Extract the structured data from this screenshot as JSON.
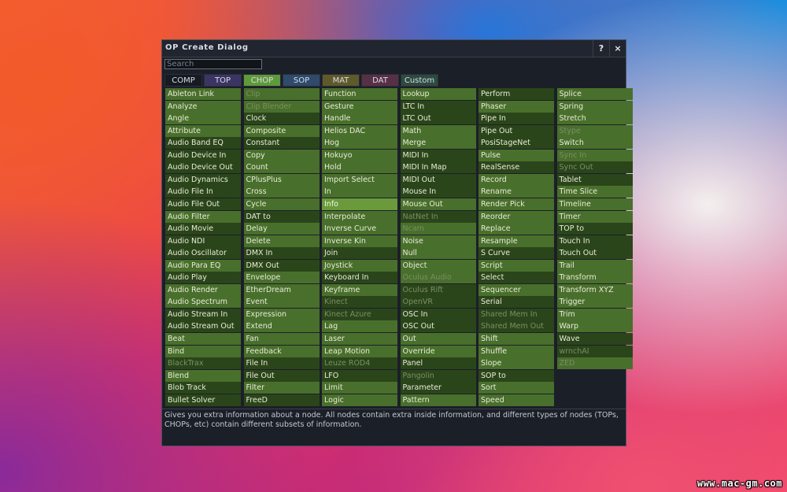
{
  "window": {
    "title": "OP Create Dialog",
    "help_label": "?",
    "close_label": "×"
  },
  "search": {
    "placeholder": "Search",
    "value": ""
  },
  "tabs": [
    {
      "label": "COMP",
      "color": "#161a22",
      "active": false
    },
    {
      "label": "TOP",
      "color": "#3b3563",
      "active": false
    },
    {
      "label": "CHOP",
      "color": "#5f9a3a",
      "active": true
    },
    {
      "label": "SOP",
      "color": "#2f4a6a",
      "active": false
    },
    {
      "label": "MAT",
      "color": "#5e5a2a",
      "active": false
    },
    {
      "label": "DAT",
      "color": "#583046",
      "active": false
    },
    {
      "label": "Custom",
      "color": "#2d4a40",
      "active": false
    }
  ],
  "selected_op": "Info",
  "columns": [
    [
      {
        "label": "Ableton Link",
        "tone": "lt"
      },
      {
        "label": "Analyze",
        "tone": "lt"
      },
      {
        "label": "Angle",
        "tone": "lt"
      },
      {
        "label": "Attribute",
        "tone": "lt"
      },
      {
        "label": "Audio Band EQ",
        "tone": "dk"
      },
      {
        "label": "Audio Device In",
        "tone": "dk"
      },
      {
        "label": "Audio Device Out",
        "tone": "dk"
      },
      {
        "label": "Audio Dynamics",
        "tone": "dk"
      },
      {
        "label": "Audio File In",
        "tone": "dk"
      },
      {
        "label": "Audio File Out",
        "tone": "dk"
      },
      {
        "label": "Audio Filter",
        "tone": "lt"
      },
      {
        "label": "Audio Movie",
        "tone": "dk"
      },
      {
        "label": "Audio NDI",
        "tone": "dk"
      },
      {
        "label": "Audio Oscillator",
        "tone": "dk"
      },
      {
        "label": "Audio Para EQ",
        "tone": "lt"
      },
      {
        "label": "Audio Play",
        "tone": "dk"
      },
      {
        "label": "Audio Render",
        "tone": "lt"
      },
      {
        "label": "Audio Spectrum",
        "tone": "lt"
      },
      {
        "label": "Audio Stream In",
        "tone": "dk"
      },
      {
        "label": "Audio Stream Out",
        "tone": "dk"
      },
      {
        "label": "Beat",
        "tone": "lt"
      },
      {
        "label": "Bind",
        "tone": "lt"
      },
      {
        "label": "BlackTrax",
        "tone": "dk",
        "disabled": true
      },
      {
        "label": "Blend",
        "tone": "lt"
      },
      {
        "label": "Blob Track",
        "tone": "dk"
      },
      {
        "label": "Bullet Solver",
        "tone": "dk"
      }
    ],
    [
      {
        "label": "Clip",
        "tone": "lt",
        "disabled": true
      },
      {
        "label": "Clip Blender",
        "tone": "lt",
        "disabled": true
      },
      {
        "label": "Clock",
        "tone": "dk"
      },
      {
        "label": "Composite",
        "tone": "lt"
      },
      {
        "label": "Constant",
        "tone": "dk"
      },
      {
        "label": "Copy",
        "tone": "lt"
      },
      {
        "label": "Count",
        "tone": "lt"
      },
      {
        "label": "CPlusPlus",
        "tone": "lt"
      },
      {
        "label": "Cross",
        "tone": "lt"
      },
      {
        "label": "Cycle",
        "tone": "lt"
      },
      {
        "label": "DAT to",
        "tone": "dk"
      },
      {
        "label": "Delay",
        "tone": "lt"
      },
      {
        "label": "Delete",
        "tone": "lt"
      },
      {
        "label": "DMX In",
        "tone": "dk"
      },
      {
        "label": "DMX Out",
        "tone": "dk"
      },
      {
        "label": "Envelope",
        "tone": "lt"
      },
      {
        "label": "EtherDream",
        "tone": "lt"
      },
      {
        "label": "Event",
        "tone": "lt"
      },
      {
        "label": "Expression",
        "tone": "lt"
      },
      {
        "label": "Extend",
        "tone": "lt"
      },
      {
        "label": "Fan",
        "tone": "lt"
      },
      {
        "label": "Feedback",
        "tone": "lt"
      },
      {
        "label": "File In",
        "tone": "dk"
      },
      {
        "label": "File Out",
        "tone": "dk"
      },
      {
        "label": "Filter",
        "tone": "lt"
      },
      {
        "label": "FreeD",
        "tone": "dk"
      }
    ],
    [
      {
        "label": "Function",
        "tone": "lt"
      },
      {
        "label": "Gesture",
        "tone": "lt"
      },
      {
        "label": "Handle",
        "tone": "lt"
      },
      {
        "label": "Helios DAC",
        "tone": "lt"
      },
      {
        "label": "Hog",
        "tone": "lt"
      },
      {
        "label": "Hokuyo",
        "tone": "lt"
      },
      {
        "label": "Hold",
        "tone": "lt"
      },
      {
        "label": "Import Select",
        "tone": "lt"
      },
      {
        "label": "In",
        "tone": "lt"
      },
      {
        "label": "Info",
        "tone": "sel"
      },
      {
        "label": "Interpolate",
        "tone": "lt"
      },
      {
        "label": "Inverse Curve",
        "tone": "lt"
      },
      {
        "label": "Inverse Kin",
        "tone": "lt"
      },
      {
        "label": "Join",
        "tone": "dk"
      },
      {
        "label": "Joystick",
        "tone": "lt"
      },
      {
        "label": "Keyboard In",
        "tone": "dk"
      },
      {
        "label": "Keyframe",
        "tone": "lt"
      },
      {
        "label": "Kinect",
        "tone": "dk",
        "disabled": true
      },
      {
        "label": "Kinect Azure",
        "tone": "dk",
        "disabled": true
      },
      {
        "label": "Lag",
        "tone": "lt"
      },
      {
        "label": "Laser",
        "tone": "lt"
      },
      {
        "label": "Leap Motion",
        "tone": "lt"
      },
      {
        "label": "Leuze ROD4",
        "tone": "dk",
        "disabled": true
      },
      {
        "label": "LFO",
        "tone": "dk"
      },
      {
        "label": "Limit",
        "tone": "lt"
      },
      {
        "label": "Logic",
        "tone": "lt"
      }
    ],
    [
      {
        "label": "Lookup",
        "tone": "lt"
      },
      {
        "label": "LTC In",
        "tone": "dk"
      },
      {
        "label": "LTC Out",
        "tone": "dk"
      },
      {
        "label": "Math",
        "tone": "lt"
      },
      {
        "label": "Merge",
        "tone": "lt"
      },
      {
        "label": "MIDI In",
        "tone": "dk"
      },
      {
        "label": "MIDI In Map",
        "tone": "dk"
      },
      {
        "label": "MIDI Out",
        "tone": "dk"
      },
      {
        "label": "Mouse In",
        "tone": "dk"
      },
      {
        "label": "Mouse Out",
        "tone": "lt"
      },
      {
        "label": "NatNet In",
        "tone": "dk",
        "disabled": true
      },
      {
        "label": "Ncam",
        "tone": "lt",
        "disabled": true
      },
      {
        "label": "Noise",
        "tone": "lt"
      },
      {
        "label": "Null",
        "tone": "lt"
      },
      {
        "label": "Object",
        "tone": "lt"
      },
      {
        "label": "Oculus Audio",
        "tone": "lt",
        "disabled": true
      },
      {
        "label": "Oculus Rift",
        "tone": "dk",
        "disabled": true
      },
      {
        "label": "OpenVR",
        "tone": "dk",
        "disabled": true
      },
      {
        "label": "OSC In",
        "tone": "dk"
      },
      {
        "label": "OSC Out",
        "tone": "dk"
      },
      {
        "label": "Out",
        "tone": "lt"
      },
      {
        "label": "Override",
        "tone": "lt"
      },
      {
        "label": "Panel",
        "tone": "dk"
      },
      {
        "label": "Pangolin",
        "tone": "dk",
        "disabled": true
      },
      {
        "label": "Parameter",
        "tone": "dk"
      },
      {
        "label": "Pattern",
        "tone": "lt"
      }
    ],
    [
      {
        "label": "Perform",
        "tone": "dk"
      },
      {
        "label": "Phaser",
        "tone": "lt"
      },
      {
        "label": "Pipe In",
        "tone": "dk"
      },
      {
        "label": "Pipe Out",
        "tone": "dk"
      },
      {
        "label": "PosiStageNet",
        "tone": "dk"
      },
      {
        "label": "Pulse",
        "tone": "lt"
      },
      {
        "label": "RealSense",
        "tone": "dk"
      },
      {
        "label": "Record",
        "tone": "lt"
      },
      {
        "label": "Rename",
        "tone": "lt"
      },
      {
        "label": "Render Pick",
        "tone": "lt"
      },
      {
        "label": "Reorder",
        "tone": "lt"
      },
      {
        "label": "Replace",
        "tone": "lt"
      },
      {
        "label": "Resample",
        "tone": "lt"
      },
      {
        "label": "S Curve",
        "tone": "dk"
      },
      {
        "label": "Script",
        "tone": "lt"
      },
      {
        "label": "Select",
        "tone": "dk"
      },
      {
        "label": "Sequencer",
        "tone": "lt"
      },
      {
        "label": "Serial",
        "tone": "dk"
      },
      {
        "label": "Shared Mem In",
        "tone": "dk",
        "disabled": true
      },
      {
        "label": "Shared Mem Out",
        "tone": "dk",
        "disabled": true
      },
      {
        "label": "Shift",
        "tone": "lt"
      },
      {
        "label": "Shuffle",
        "tone": "lt"
      },
      {
        "label": "Slope",
        "tone": "lt"
      },
      {
        "label": "SOP to",
        "tone": "dk"
      },
      {
        "label": "Sort",
        "tone": "lt"
      },
      {
        "label": "Speed",
        "tone": "lt"
      }
    ],
    [
      {
        "label": "Splice",
        "tone": "lt"
      },
      {
        "label": "Spring",
        "tone": "lt"
      },
      {
        "label": "Stretch",
        "tone": "lt"
      },
      {
        "label": "Stype",
        "tone": "lt",
        "disabled": true
      },
      {
        "label": "Switch",
        "tone": "lt"
      },
      {
        "label": "Sync In",
        "tone": "lt",
        "disabled": true
      },
      {
        "label": "Sync Out",
        "tone": "dk",
        "disabled": true
      },
      {
        "label": "Tablet",
        "tone": "dk"
      },
      {
        "label": "Time Slice",
        "tone": "lt"
      },
      {
        "label": "Timeline",
        "tone": "lt"
      },
      {
        "label": "Timer",
        "tone": "lt"
      },
      {
        "label": "TOP to",
        "tone": "dk"
      },
      {
        "label": "Touch In",
        "tone": "dk"
      },
      {
        "label": "Touch Out",
        "tone": "dk"
      },
      {
        "label": "Trail",
        "tone": "lt"
      },
      {
        "label": "Transform",
        "tone": "lt"
      },
      {
        "label": "Transform XYZ",
        "tone": "lt"
      },
      {
        "label": "Trigger",
        "tone": "lt"
      },
      {
        "label": "Trim",
        "tone": "lt"
      },
      {
        "label": "Warp",
        "tone": "lt"
      },
      {
        "label": "Wave",
        "tone": "dk"
      },
      {
        "label": "wrnchAI",
        "tone": "dk",
        "disabled": true
      },
      {
        "label": "ZED",
        "tone": "lt",
        "disabled": true
      }
    ]
  ],
  "description": "Gives you extra information about a node. All nodes contain extra inside information, and different types of nodes (TOPs, CHOPs, etc) contain different subsets of information.",
  "watermark": "www.mac-gm.com"
}
